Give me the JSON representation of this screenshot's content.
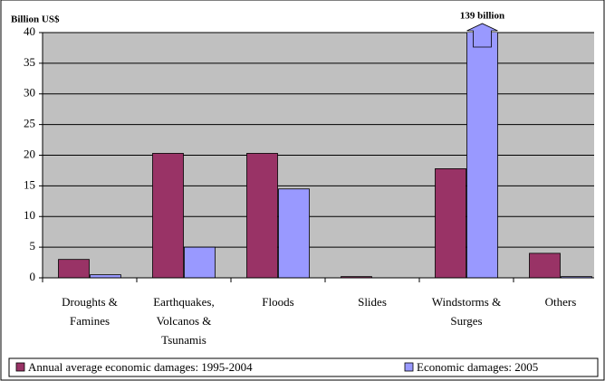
{
  "chart_data": {
    "type": "bar",
    "y_label": "Billion US$",
    "categories": [
      "Droughts &\nFamines",
      "Earthquakes,\nVolcanos &\nTsunamis",
      "Floods",
      "Slides",
      "Windstorms &\nSurges",
      "Others"
    ],
    "series": [
      {
        "name": "Annual average economic damages: 1995-2004",
        "color": "#993366",
        "values": [
          3.0,
          20.3,
          20.3,
          0.2,
          17.8,
          4.0
        ]
      },
      {
        "name": "Economic damages: 2005",
        "color": "#9999ff",
        "values": [
          0.5,
          5.0,
          14.5,
          0,
          139,
          0.2
        ],
        "value_labels": [
          null,
          null,
          null,
          null,
          "139 billion",
          null
        ]
      }
    ],
    "ylim": [
      0,
      40
    ],
    "yticks": [
      0,
      5,
      10,
      15,
      20,
      25,
      30,
      35,
      40
    ],
    "grid": true,
    "legend": "bottom"
  }
}
